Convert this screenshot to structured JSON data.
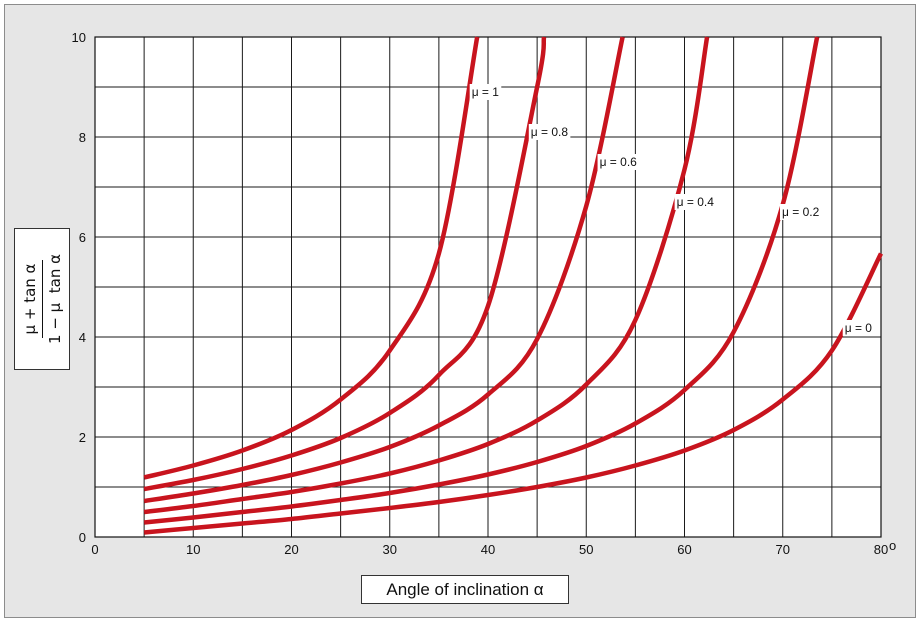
{
  "chart_data": {
    "type": "line",
    "title": "",
    "xlabel": "Angle of inclination α",
    "ylabel_numerator": "μ + tan α",
    "ylabel_denominator": "1 − μ  tan α",
    "xlim": [
      0,
      80
    ],
    "ylim": [
      0,
      10
    ],
    "x_ticks": [
      "0",
      "10",
      "20",
      "30",
      "40",
      "50",
      "60",
      "70",
      "80"
    ],
    "x_unit_suffix": "o",
    "y_ticks": [
      "0",
      "2",
      "4",
      "6",
      "8",
      "10"
    ],
    "grid": true,
    "grid_x_step": 5,
    "grid_y_step": 1,
    "line_color": "#c8141e",
    "series": [
      {
        "name": "μ = 0",
        "label": "μ = 0",
        "mu": 0,
        "x": [
          5,
          10,
          15,
          20,
          25,
          30,
          35,
          40,
          45,
          50,
          55,
          60,
          65,
          70,
          75,
          80
        ],
        "y": [
          0.09,
          0.18,
          0.27,
          0.36,
          0.47,
          0.58,
          0.7,
          0.84,
          1.0,
          1.19,
          1.43,
          1.73,
          2.14,
          2.75,
          3.73,
          5.67
        ]
      },
      {
        "name": "μ = 0.2",
        "label": "μ = 0.2",
        "mu": 0.2,
        "x": [
          5,
          10,
          15,
          20,
          25,
          30,
          35,
          40,
          45,
          50,
          55,
          60,
          65,
          70,
          73.5
        ],
        "y": [
          0.29,
          0.39,
          0.5,
          0.61,
          0.74,
          0.88,
          1.05,
          1.25,
          1.5,
          1.82,
          2.27,
          2.94,
          4.1,
          6.65,
          10
        ]
      },
      {
        "name": "μ = 0.4",
        "label": "μ = 0.4",
        "mu": 0.4,
        "x": [
          5,
          10,
          15,
          20,
          25,
          30,
          35,
          40,
          45,
          50,
          55,
          60,
          62.3
        ],
        "y": [
          0.5,
          0.62,
          0.76,
          0.9,
          1.07,
          1.27,
          1.53,
          1.86,
          2.33,
          3.05,
          4.34,
          7.35,
          10
        ]
      },
      {
        "name": "μ = 0.6",
        "label": "μ = 0.6",
        "mu": 0.6,
        "x": [
          5,
          10,
          15,
          20,
          25,
          30,
          35,
          40,
          45,
          50,
          53.7
        ],
        "y": [
          0.72,
          0.87,
          1.04,
          1.24,
          1.49,
          1.8,
          2.23,
          2.85,
          3.96,
          6.62,
          10
        ]
      },
      {
        "name": "μ = 0.8",
        "label": "μ = 0.8",
        "mu": 0.8,
        "x": [
          5,
          10,
          15,
          20,
          25,
          30,
          35,
          40,
          45,
          45.7
        ],
        "y": [
          0.96,
          1.14,
          1.36,
          1.63,
          1.98,
          2.48,
          3.24,
          4.62,
          9.0,
          10
        ]
      },
      {
        "name": "μ = 1",
        "label": "μ = 1",
        "mu": 1,
        "x": [
          5,
          10,
          15,
          20,
          25,
          30,
          35,
          38.9
        ],
        "y": [
          1.19,
          1.43,
          1.73,
          2.14,
          2.75,
          3.73,
          5.67,
          10
        ]
      }
    ]
  }
}
